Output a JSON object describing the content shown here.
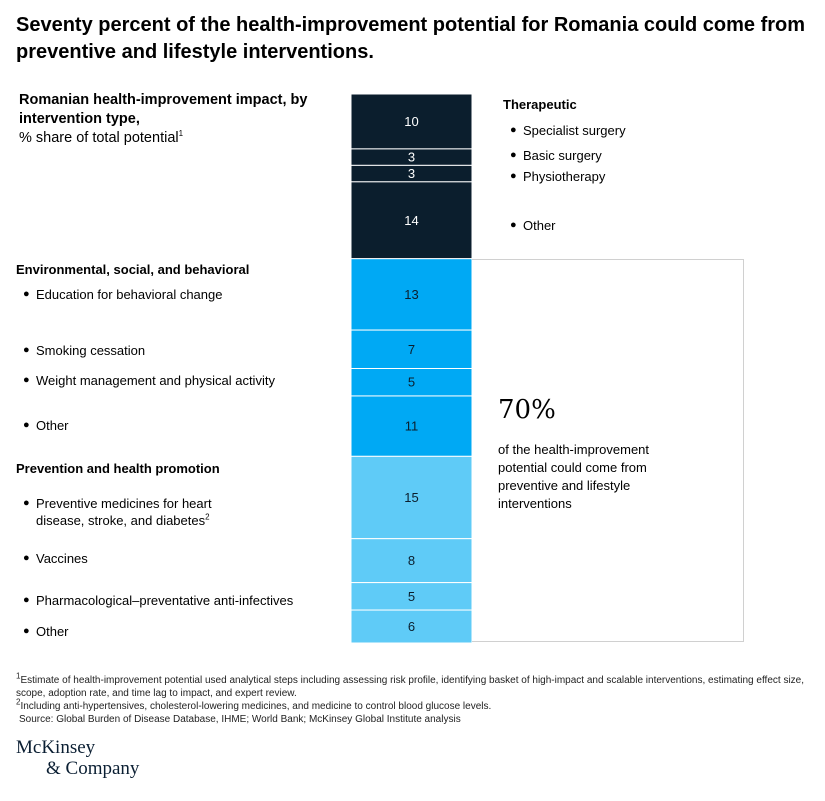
{
  "title": "Seventy percent of the health-improvement potential for Romania could come from preventive and lifestyle interventions.",
  "subtitle": {
    "bold": "Romanian health-improvement impact, by intervention type,",
    "regular": "% share of total potential",
    "note": "1"
  },
  "groups": {
    "therapeutic": "Therapeutic",
    "environmental": "Environmental, social, and behavioral",
    "prevention": "Prevention and health promotion"
  },
  "labels": {
    "specialist_surgery": "Specialist surgery",
    "basic_surgery": "Basic surgery",
    "physiotherapy": "Physiotherapy",
    "therapeutic_other": "Other",
    "education": "Education for behavioral change",
    "smoking": "Smoking cessation",
    "weight": "Weight management and physical activity",
    "environmental_other": "Other",
    "preventive_medicines_1": "Preventive medicines for heart",
    "preventive_medicines_2": "disease, stroke, and diabetes",
    "preventive_medicines_note": "2",
    "vaccines": "Vaccines",
    "anti_infectives": "Pharmacological–preventative anti-infectives",
    "prevention_other": "Other"
  },
  "callout": {
    "value": "70%",
    "text": "of the health-improvement potential could come from preventive and lifestyle interventions"
  },
  "footnotes": {
    "note1_mark": "1",
    "note1": "Estimate of health-improvement potential used analytical steps including assessing risk profile, identifying basket of high-impact and scalable interventions, estimating effect size, scope, adoption rate, and time lag to impact, and expert review.",
    "note2_mark": "2",
    "note2": "Including anti-hypertensives, cholesterol-lowering medicines, and medicine to control blood glucose levels.",
    "source": "Source: Global Burden of Disease Database, IHME; World Bank; McKinsey Global Institute analysis"
  },
  "logo": {
    "line1": "McKinsey",
    "line2": "& Company"
  },
  "colors": {
    "therapeutic": "#0b1e2d",
    "environmental": "#00a9f4",
    "prevention": "#5fcbf7",
    "divider": "#ffffff"
  },
  "chart_data": {
    "type": "bar",
    "stacked": true,
    "categories": [
      "Specialist surgery",
      "Basic surgery",
      "Physiotherapy",
      "Other",
      "Education for behavioral change",
      "Smoking cessation",
      "Weight management and physical activity",
      "Other",
      "Preventive medicines for heart disease, stroke, and diabetes",
      "Vaccines",
      "Pharmacological–preventative anti-infectives",
      "Other"
    ],
    "groups": [
      "therapeutic",
      "therapeutic",
      "therapeutic",
      "therapeutic",
      "environmental",
      "environmental",
      "environmental",
      "environmental",
      "prevention",
      "prevention",
      "prevention",
      "prevention"
    ],
    "values": [
      10,
      3,
      3,
      14,
      13,
      7,
      5,
      11,
      15,
      8,
      5,
      6
    ],
    "ylim": [
      0,
      100
    ]
  }
}
